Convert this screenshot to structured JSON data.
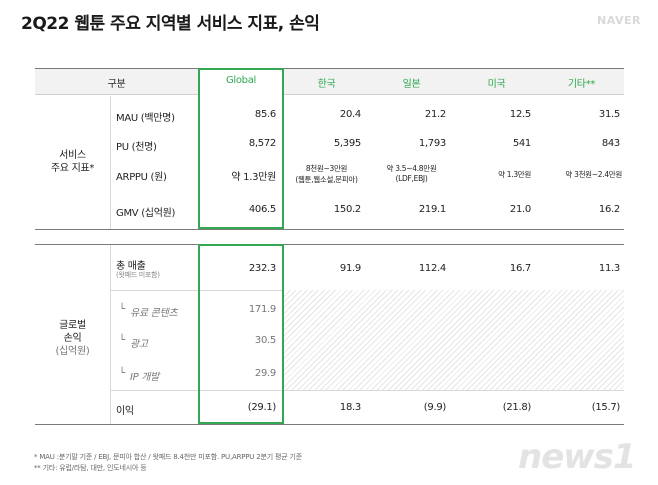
{
  "title": "2Q22 웹툰 주요 지역별 서비스 지표, 손익",
  "brand": "NAVER",
  "header": {
    "category": "구분",
    "columns": [
      "Global",
      "한국",
      "일본",
      "미국",
      "기타**"
    ]
  },
  "service": {
    "section_label": "서비스\n주요 지표*",
    "rows": [
      {
        "label": "MAU (백만명)",
        "values": [
          "85.6",
          "20.4",
          "21.2",
          "12.5",
          "31.5"
        ]
      },
      {
        "label": "PU (천명)",
        "values": [
          "8,572",
          "5,395",
          "1,793",
          "541",
          "843"
        ]
      },
      {
        "label": "ARPPU (원)",
        "values": [
          "약 1.3만원",
          "8천원~3만원",
          "약 3.5~4.8만원",
          "약 1.3만원",
          "약 3천원~2.4만원"
        ],
        "subs": [
          "",
          "(웹툰,웹소설,문피아)",
          "(LDF,EBJ)",
          "",
          ""
        ]
      },
      {
        "label": "GMV (십억원)",
        "values": [
          "406.5",
          "150.2",
          "219.1",
          "21.0",
          "16.2"
        ]
      }
    ]
  },
  "pnl": {
    "section_label_1": "글로벌",
    "section_label_2": "손익",
    "section_unit": "(십억원)",
    "revenue": {
      "label": "총 매출",
      "sub": "(왓패드 미포함)",
      "values": [
        "232.3",
        "91.9",
        "112.4",
        "16.7",
        "11.3"
      ]
    },
    "breakdown": [
      {
        "label": "유료 콘텐츠",
        "value": "171.9"
      },
      {
        "label": "광고",
        "value": "30.5"
      },
      {
        "label": "IP 개발",
        "value": "29.9"
      }
    ],
    "profit": {
      "label": "이익",
      "values": [
        "(29.1)",
        "18.3",
        "(9.9)",
        "(21.8)",
        "(15.7)"
      ]
    }
  },
  "footnotes": [
    "* MAU :분기말 기준 / EBJ, 문피아 합산 / 왓패드 8.4천만 미포함. PU,ARPPU 2분기 평균 기준",
    "** 기타: 유럽/라탐, 대만, 인도네시아 등"
  ],
  "watermark": "news1"
}
